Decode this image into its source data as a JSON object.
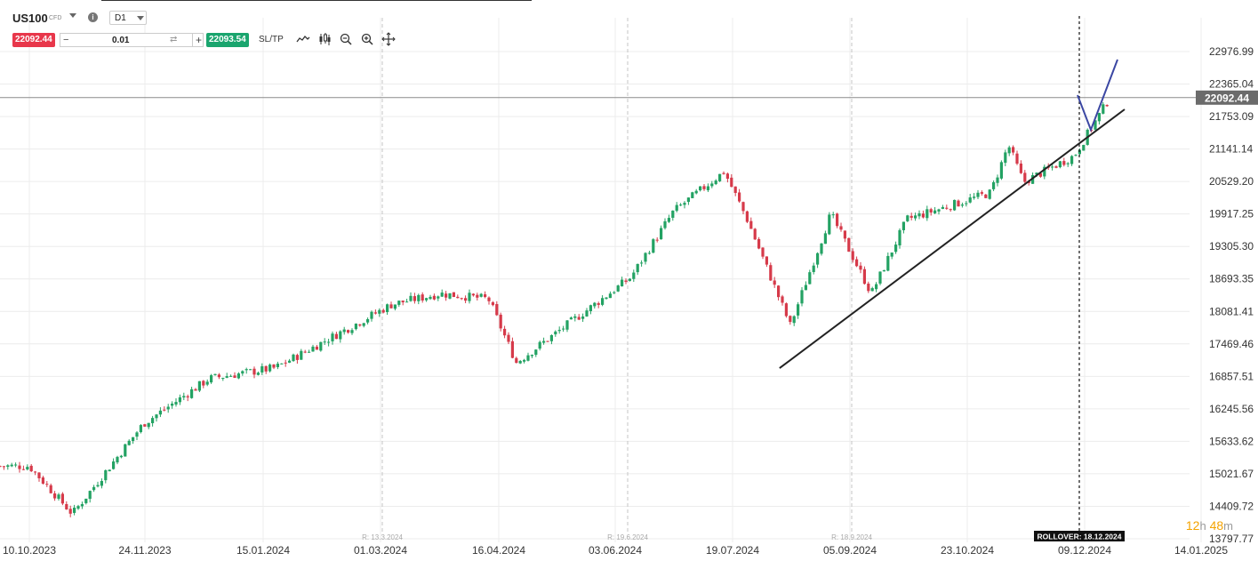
{
  "header": {
    "symbol": "US100",
    "instrument_type": "CFD",
    "info_icon": "i",
    "timeframe": "D1",
    "sell_price": "22092.44",
    "buy_price": "22093.54",
    "lot_size": "0.01",
    "lot_minus": "−",
    "lot_plus": "+",
    "sltp_label": "SL/TP",
    "tools": [
      "line-chart-icon",
      "candlestick-icon",
      "zoom-out-icon",
      "zoom-in-icon",
      "crosshair-move-icon"
    ]
  },
  "countdown": {
    "hours": "12",
    "hours_unit": "h",
    "minutes": "48",
    "minutes_unit": "m"
  },
  "rollover_label": "ROLLOVER: 18.12.2024",
  "current_price_label": "22092.44",
  "colors": {
    "bull": "#23a263",
    "bear": "#d63a4a",
    "trendline": "#222222",
    "projection": "#3b47a3",
    "price_tag": "#6b6b6b"
  },
  "chart_data": {
    "type": "candlestick",
    "instrument": "US100",
    "timeframe": "D1",
    "x_labels": [
      "10.10.2023",
      "24.11.2023",
      "15.01.2024",
      "01.03.2024",
      "16.04.2024",
      "03.06.2024",
      "19.07.2024",
      "05.09.2024",
      "23.10.2024",
      "09.12.2024",
      "14.01.2025"
    ],
    "y_ticks": [
      "22976.99",
      "22365.04",
      "21753.09",
      "21141.14",
      "20529.20",
      "19917.25",
      "19305.30",
      "18693.35",
      "18081.41",
      "17469.46",
      "16857.51",
      "16245.56",
      "15633.62",
      "15021.67",
      "14409.72",
      "13797.77"
    ],
    "ylim": [
      13797.77,
      22976.99
    ],
    "rollover_markers": [
      "R: 13.3.2024",
      "R: 19.6.2024",
      "R: 18.9.2024"
    ],
    "current_price": 22092.44,
    "key_points": [
      {
        "date": "10.10.2023",
        "close": 15150
      },
      {
        "date": "27.10.2023",
        "close": 14250
      },
      {
        "date": "24.11.2023",
        "close": 15950
      },
      {
        "date": "20.12.2023",
        "close": 16800
      },
      {
        "date": "15.01.2024",
        "close": 17000
      },
      {
        "date": "01.03.2024",
        "close": 18200
      },
      {
        "date": "20.03.2024",
        "close": 18400
      },
      {
        "date": "08.04.2024",
        "close": 18300
      },
      {
        "date": "19.04.2024",
        "close": 17100
      },
      {
        "date": "03.06.2024",
        "close": 18700
      },
      {
        "date": "20.06.2024",
        "close": 19950
      },
      {
        "date": "10.07.2024",
        "close": 20700
      },
      {
        "date": "19.07.2024",
        "close": 19800
      },
      {
        "date": "05.08.2024",
        "close": 17800
      },
      {
        "date": "21.08.2024",
        "close": 19900
      },
      {
        "date": "06.09.2024",
        "close": 18400
      },
      {
        "date": "20.09.2024",
        "close": 19800
      },
      {
        "date": "23.10.2024",
        "close": 20300
      },
      {
        "date": "30.10.2024",
        "close": 21200
      },
      {
        "date": "05.11.2024",
        "close": 20500
      },
      {
        "date": "25.11.2024",
        "close": 21000
      },
      {
        "date": "09.12.2024",
        "close": 22092
      }
    ],
    "trendline": [
      {
        "date": "05.08.2024",
        "value": 17280
      },
      {
        "date": "24.12.2024",
        "value": 21810
      }
    ],
    "projection": [
      {
        "date": "09.12.2024",
        "value": 22100
      },
      {
        "date": "14.12.2024",
        "value": 21420
      },
      {
        "date": "23.12.2024",
        "value": 22450
      }
    ]
  }
}
